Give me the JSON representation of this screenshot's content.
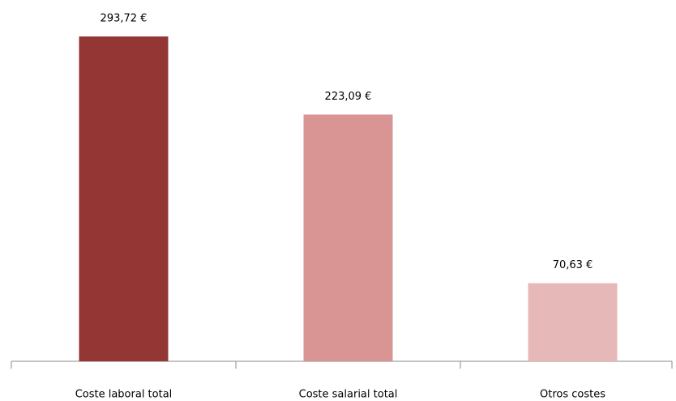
{
  "chart_data": {
    "type": "bar",
    "categories": [
      "Coste laboral total",
      "Coste salarial total",
      "Otros costes"
    ],
    "values": [
      293.72,
      223.09,
      70.63
    ],
    "value_labels": [
      "293,72 €",
      "223,09 €",
      "70,63 €"
    ],
    "colors": [
      "#943634",
      "#d99594",
      "#e6b9b8"
    ]
  }
}
